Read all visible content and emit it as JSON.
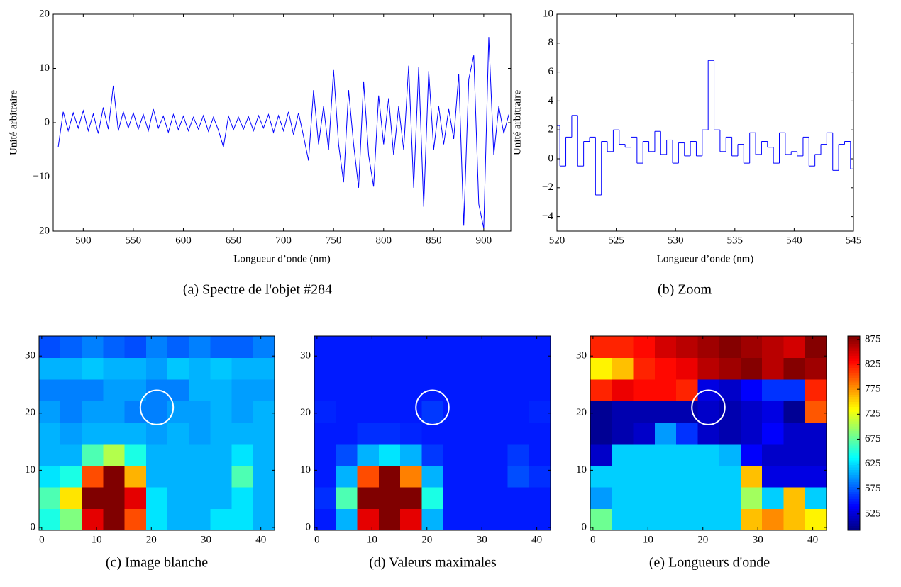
{
  "chart_data": [
    {
      "type": "line",
      "caption": "(a) Spectre de l'objet #284",
      "xlabel": "Longueur d’onde (nm)",
      "ylabel": "Unité arbitraire",
      "color": "#0000ff",
      "xlim": [
        470,
        927
      ],
      "ylim": [
        -20,
        20
      ],
      "xticks": [
        500,
        550,
        600,
        650,
        700,
        750,
        800,
        850,
        900
      ],
      "yticks": [
        {
          "value": -20,
          "label": "−20"
        },
        {
          "value": -10,
          "label": "−10"
        },
        0,
        10,
        20
      ],
      "x": [
        475,
        480,
        485,
        490,
        495,
        500,
        505,
        510,
        515,
        520,
        525,
        530,
        535,
        540,
        545,
        550,
        555,
        560,
        565,
        570,
        575,
        580,
        585,
        590,
        595,
        600,
        605,
        610,
        615,
        620,
        625,
        630,
        635,
        640,
        645,
        650,
        655,
        660,
        665,
        670,
        675,
        680,
        685,
        690,
        695,
        700,
        705,
        710,
        715,
        720,
        725,
        730,
        735,
        740,
        745,
        750,
        755,
        760,
        765,
        770,
        775,
        780,
        785,
        790,
        795,
        800,
        805,
        810,
        815,
        820,
        825,
        830,
        835,
        840,
        845,
        850,
        855,
        860,
        865,
        870,
        875,
        880,
        885,
        890,
        895,
        900,
        905,
        910,
        915,
        920,
        925
      ],
      "values": [
        -4.5,
        2,
        -1.5,
        1.8,
        -1,
        2.2,
        -1.5,
        1.6,
        -2,
        2.8,
        -1.2,
        6.8,
        -1.5,
        2,
        -1,
        1.8,
        -1.2,
        1.5,
        -1.5,
        2.5,
        -1,
        1.2,
        -1.8,
        1.5,
        -1.3,
        1.2,
        -1.5,
        1,
        -1.2,
        1.3,
        -1.6,
        1,
        -1.4,
        -4.5,
        1.2,
        -1.3,
        1,
        -1.2,
        1.1,
        -1.5,
        1.3,
        -1,
        1.5,
        -1.8,
        1.3,
        -1.5,
        2,
        -2.2,
        1.8,
        -2.5,
        -7,
        6,
        -4,
        3,
        -5,
        9.7,
        -4,
        -11,
        6,
        -4,
        -12,
        7.6,
        -6,
        -11.8,
        5,
        -4,
        4.5,
        -6,
        3,
        -5,
        10.5,
        -12,
        10.3,
        -15.5,
        9.5,
        -5,
        3,
        -4,
        2.5,
        -3,
        9,
        -19,
        8,
        12.4,
        -15,
        -19.5,
        15.8,
        -6,
        3,
        -2,
        1.5
      ]
    },
    {
      "type": "step",
      "caption": "(b) Zoom",
      "xlabel": "Longueur d’onde (nm)",
      "ylabel": "Unité arbitraire",
      "color": "#0000ff",
      "xlim": [
        520,
        545
      ],
      "ylim": [
        -5,
        10
      ],
      "xticks": [
        520,
        525,
        530,
        535,
        540,
        545
      ],
      "yticks": [
        {
          "value": -4,
          "label": "−4"
        },
        {
          "value": -2,
          "label": "−2"
        },
        0,
        2,
        4,
        6,
        8,
        10
      ],
      "x": [
        520,
        520.5,
        521,
        521.5,
        522,
        522.5,
        523,
        523.5,
        524,
        524.5,
        525,
        525.5,
        526,
        526.5,
        527,
        527.5,
        528,
        528.5,
        529,
        529.5,
        530,
        530.5,
        531,
        531.5,
        532,
        532.5,
        533,
        533.5,
        534,
        534.5,
        535,
        535.5,
        536,
        536.5,
        537,
        537.5,
        538,
        538.5,
        539,
        539.5,
        540,
        540.5,
        541,
        541.5,
        542,
        542.5,
        543,
        543.5,
        544,
        544.5,
        545
      ],
      "values": [
        2.3,
        -0.5,
        1.5,
        3,
        -0.5,
        1.2,
        1.5,
        -2.5,
        1.2,
        0.5,
        2,
        1,
        0.8,
        1.5,
        -0.3,
        1.2,
        0.5,
        1.9,
        0.3,
        1.3,
        -0.3,
        1.1,
        0.2,
        1.2,
        0.2,
        2,
        6.8,
        2,
        0.5,
        1.5,
        0.2,
        1,
        -0.3,
        1.8,
        0.3,
        1.2,
        0.8,
        -0.3,
        1.8,
        0.3,
        0.5,
        0.2,
        1.5,
        -0.5,
        0.3,
        1,
        1.8,
        -0.8,
        1,
        1.2,
        -0.7
      ]
    },
    {
      "type": "heatmap",
      "caption": "(c) Image blanche",
      "colormap": "jet",
      "zlim": [
        0,
        1
      ],
      "xlim": [
        -0.5,
        42.5
      ],
      "ylim": [
        -0.5,
        33.5
      ],
      "xticks": [
        0,
        10,
        20,
        30,
        40
      ],
      "yticks": [
        0,
        10,
        20,
        30
      ],
      "highlight": {
        "x": 21,
        "y": 21,
        "radius": 3,
        "color": "#ffffff"
      },
      "z": [
        [
          0.4,
          0.5,
          0.9,
          1,
          0.8,
          0.35,
          0.3,
          0.3,
          0.35,
          0.35,
          0.3
        ],
        [
          0.45,
          0.65,
          1,
          1,
          0.9,
          0.35,
          0.3,
          0.3,
          0.3,
          0.35,
          0.3
        ],
        [
          0.35,
          0.4,
          0.8,
          1,
          0.7,
          0.3,
          0.3,
          0.3,
          0.3,
          0.45,
          0.3
        ],
        [
          0.3,
          0.3,
          0.45,
          0.55,
          0.4,
          0.3,
          0.3,
          0.3,
          0.3,
          0.35,
          0.3
        ],
        [
          0.3,
          0.28,
          0.3,
          0.3,
          0.3,
          0.28,
          0.3,
          0.28,
          0.3,
          0.3,
          0.3
        ],
        [
          0.28,
          0.25,
          0.28,
          0.28,
          0.25,
          0.25,
          0.28,
          0.28,
          0.3,
          0.28,
          0.3
        ],
        [
          0.25,
          0.25,
          0.25,
          0.28,
          0.28,
          0.25,
          0.25,
          0.3,
          0.3,
          0.28,
          0.28
        ],
        [
          0.3,
          0.3,
          0.32,
          0.3,
          0.3,
          0.28,
          0.32,
          0.3,
          0.32,
          0.3,
          0.3
        ],
        [
          0.2,
          0.22,
          0.25,
          0.22,
          0.2,
          0.25,
          0.22,
          0.25,
          0.22,
          0.22,
          0.25
        ]
      ]
    },
    {
      "type": "heatmap",
      "caption": "(d) Valeurs maximales",
      "colormap": "jet",
      "zlim": [
        0,
        1
      ],
      "xlim": [
        -0.5,
        42.5
      ],
      "ylim": [
        -0.5,
        33.5
      ],
      "xticks": [
        0,
        10,
        20,
        30,
        40
      ],
      "yticks": [
        0,
        10,
        20,
        30
      ],
      "highlight": {
        "x": 21,
        "y": 21,
        "radius": 3,
        "color": "#ffffff"
      },
      "z": [
        [
          0.15,
          0.3,
          0.9,
          1,
          0.9,
          0.3,
          0.15,
          0.15,
          0.15,
          0.15,
          0.15
        ],
        [
          0.17,
          0.45,
          1,
          1,
          1,
          0.4,
          0.15,
          0.15,
          0.15,
          0.15,
          0.15
        ],
        [
          0.15,
          0.3,
          0.8,
          1,
          0.75,
          0.3,
          0.15,
          0.15,
          0.15,
          0.2,
          0.17
        ],
        [
          0.15,
          0.2,
          0.3,
          0.35,
          0.3,
          0.18,
          0.15,
          0.15,
          0.15,
          0.18,
          0.15
        ],
        [
          0.15,
          0.15,
          0.17,
          0.17,
          0.16,
          0.15,
          0.15,
          0.15,
          0.15,
          0.15,
          0.15
        ],
        [
          0.16,
          0.15,
          0.15,
          0.15,
          0.15,
          0.18,
          0.15,
          0.15,
          0.15,
          0.15,
          0.16
        ],
        [
          0.15,
          0.15,
          0.15,
          0.15,
          0.15,
          0.15,
          0.15,
          0.15,
          0.15,
          0.15,
          0.15
        ],
        [
          0.15,
          0.15,
          0.15,
          0.15,
          0.15,
          0.15,
          0.15,
          0.15,
          0.15,
          0.15,
          0.15
        ],
        [
          0.15,
          0.15,
          0.15,
          0.15,
          0.15,
          0.15,
          0.15,
          0.15,
          0.15,
          0.15,
          0.15
        ]
      ]
    },
    {
      "type": "heatmap",
      "caption": "(e) Longueurs d'onde",
      "colormap": "jet",
      "zlim": [
        492,
        882
      ],
      "colorbar_ticks": [
        525,
        575,
        625,
        675,
        725,
        775,
        825,
        875
      ],
      "xlim": [
        -0.5,
        42.5
      ],
      "ylim": [
        -0.5,
        33.5
      ],
      "xticks": [
        0,
        10,
        20,
        30,
        40
      ],
      "yticks": [
        0,
        10,
        20,
        30
      ],
      "highlight": {
        "x": 21,
        "y": 21,
        "radius": 3,
        "color": "#ffffff"
      },
      "z": [
        [
          680,
          620,
          620,
          620,
          620,
          620,
          620,
          760,
          780,
          760,
          740
        ],
        [
          600,
          620,
          620,
          620,
          620,
          620,
          620,
          700,
          620,
          760,
          620
        ],
        [
          620,
          620,
          620,
          620,
          620,
          620,
          620,
          760,
          530,
          530,
          530
        ],
        [
          520,
          620,
          620,
          620,
          620,
          620,
          610,
          540,
          520,
          520,
          520
        ],
        [
          500,
          510,
          520,
          600,
          560,
          520,
          510,
          520,
          540,
          520,
          520
        ],
        [
          500,
          510,
          510,
          510,
          510,
          520,
          510,
          520,
          530,
          500,
          800
        ],
        [
          820,
          840,
          830,
          830,
          820,
          530,
          520,
          540,
          560,
          560,
          820
        ],
        [
          740,
          760,
          820,
          830,
          840,
          860,
          870,
          880,
          860,
          880,
          870
        ],
        [
          820,
          820,
          830,
          850,
          860,
          870,
          880,
          870,
          860,
          850,
          880
        ]
      ]
    }
  ]
}
